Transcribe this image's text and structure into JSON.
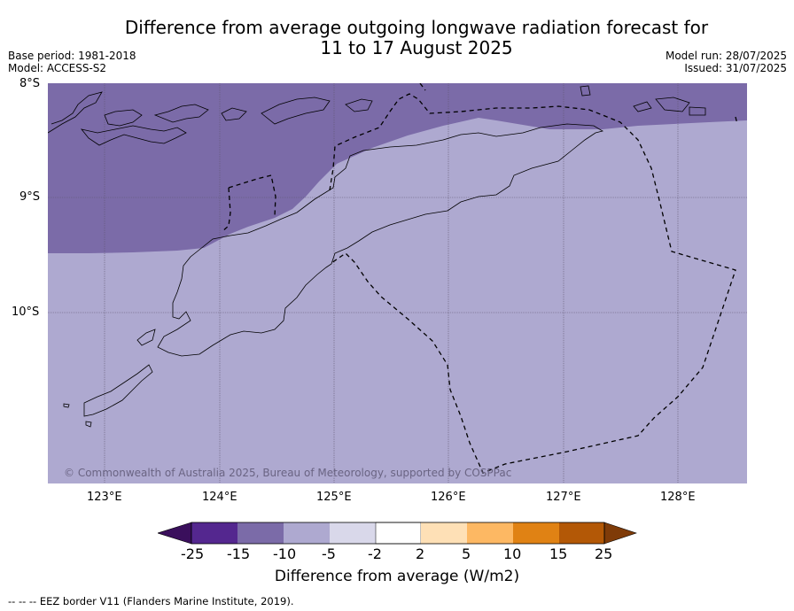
{
  "title_line1": "Difference from average outgoing longwave radiation forecast for",
  "title_line2": "11 to 17 August 2025",
  "meta_left": [
    "Base period: 1981-2018",
    "Model: ACCESS-S2"
  ],
  "meta_right": [
    "Model run: 28/07/2025",
    "Issued: 31/07/2025"
  ],
  "latitude_labels": [
    "8°S",
    "9°S",
    "10°S"
  ],
  "longitude_labels": [
    "123°E",
    "124°E",
    "125°E",
    "126°E",
    "127°E",
    "128°E"
  ],
  "copyright": "© Commonwealth of Australia 2025, Bureau of Meteorology, supported by COSPPac",
  "colorbar": {
    "ticks": [
      "-25",
      "-15",
      "-10",
      "-5",
      "-2",
      "2",
      "5",
      "10",
      "15",
      "25"
    ],
    "colors": [
      "#3a0f5c",
      "#54278f",
      "#7b6ba8",
      "#aea9d0",
      "#d9d8ea",
      "#ffffff",
      "#fee0b6",
      "#fdb863",
      "#e08214",
      "#b35806",
      "#7f3b08"
    ],
    "label": "Difference from average (W/m2)"
  },
  "map_fill": {
    "band_-15_-10": "#7b6ba8",
    "band_-10_-5": "#aea9d0"
  },
  "footer": "-- -- -- EEZ border V11 (Flanders Marine Institute, 2019)."
}
